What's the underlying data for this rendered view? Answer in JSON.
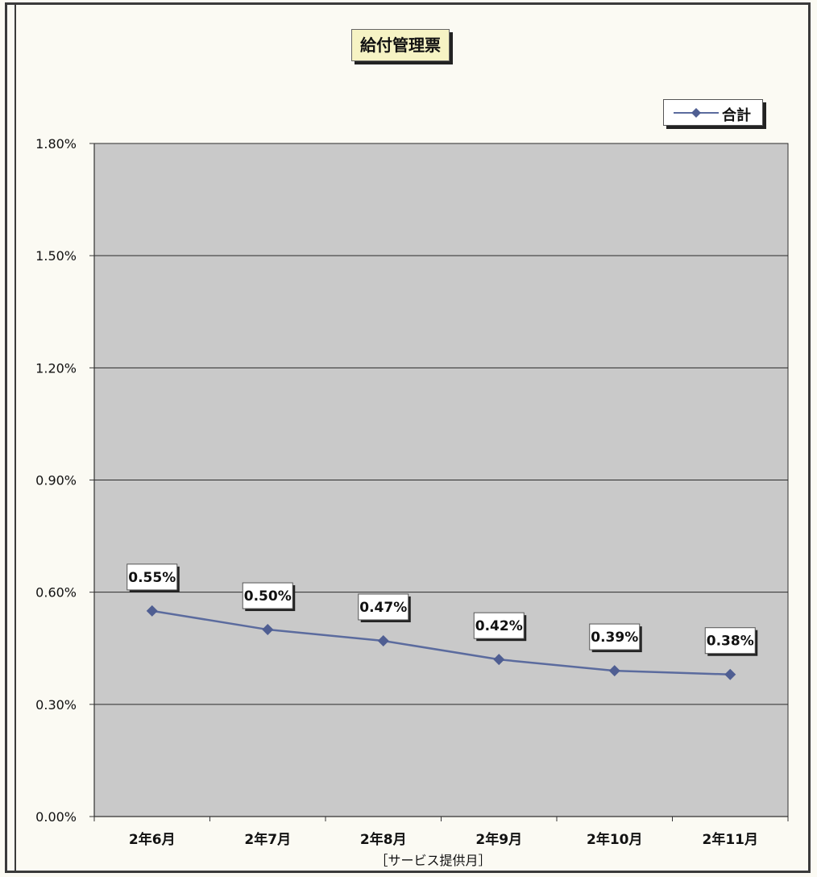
{
  "chart_data": {
    "type": "line",
    "title": "給付管理票",
    "xlabel": "［サービス提供月］",
    "ylabel": "",
    "categories": [
      "2年6月",
      "2年7月",
      "2年8月",
      "2年9月",
      "2年10月",
      "2年11月"
    ],
    "series": [
      {
        "name": "合計",
        "values": [
          0.55,
          0.5,
          0.47,
          0.42,
          0.39,
          0.38
        ],
        "labels": [
          "0.55%",
          "0.50%",
          "0.47%",
          "0.42%",
          "0.39%",
          "0.38%"
        ]
      }
    ],
    "ylim": [
      0,
      1.8
    ],
    "yticks": [
      0,
      0.3,
      0.6,
      0.9,
      1.2,
      1.5,
      1.8
    ],
    "ytick_labels": [
      "0.00%",
      "0.30%",
      "0.60%",
      "0.90%",
      "1.20%",
      "1.50%",
      "1.80%"
    ],
    "grid": true,
    "legend_position": "top-right",
    "colors": {
      "line": "#5b6b9e",
      "marker": "#4f5e92",
      "plot_bg": "#c9c9c9",
      "gridline": "#2a2a2a"
    }
  }
}
